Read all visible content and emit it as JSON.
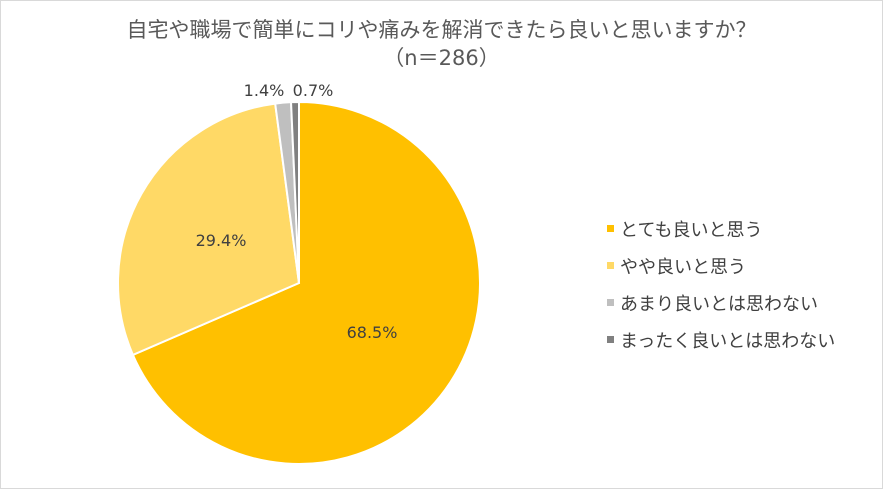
{
  "chart_data": {
    "type": "pie",
    "title": "自宅や職場で簡単にコリや痛みを解消できたら良いと思いますか？",
    "subtitle": "（n＝286）",
    "categories": [
      "とても良いと思う",
      "やや良いと思う",
      "あまり良いとは思わない",
      "まったく良いとは思わない"
    ],
    "values": [
      68.5,
      29.4,
      1.4,
      0.7
    ],
    "value_labels": [
      "68.5%",
      "29.4%",
      "1.4%",
      "0.7%"
    ],
    "colors": [
      "#FFC000",
      "#FFD966",
      "#BFBFBF",
      "#808080"
    ],
    "legend_position": "right"
  }
}
